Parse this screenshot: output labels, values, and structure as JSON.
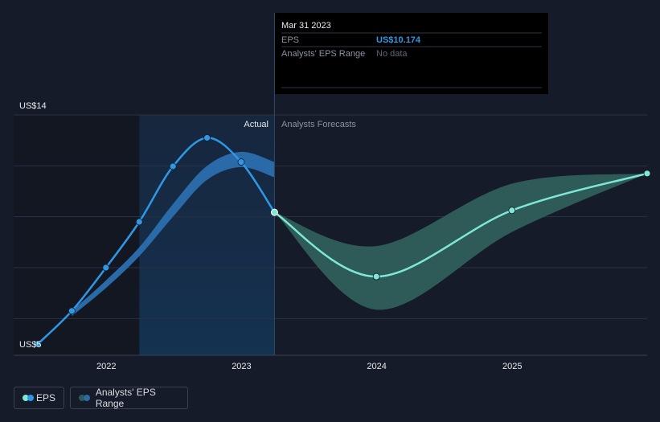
{
  "colors": {
    "background": "#151b28",
    "actual_shade": "#16263e",
    "eps_actual": "#2f98e6",
    "eps_actual_band": "#2a6aa8",
    "eps_forecast": "#7de8d6",
    "forecast_band": "#2e5a58",
    "grid": "#2a3140",
    "text_muted": "#8b93a1",
    "text_light": "#e6e9ee"
  },
  "tooltip": {
    "date": "Mar 31 2023",
    "eps_label": "EPS",
    "eps_value": "US$10.174",
    "range_label": "Analysts' EPS Range",
    "range_value": "No data"
  },
  "section_labels": {
    "actual": "Actual",
    "forecast": "Analysts Forecasts"
  },
  "legend": {
    "eps": "EPS",
    "range": "Analysts' EPS Range"
  },
  "chart_data": {
    "type": "line",
    "ylim": [
      5,
      14
    ],
    "ytick_labels": [
      {
        "value": 14,
        "label": "US$14"
      },
      {
        "value": 5,
        "label": "US$5"
      }
    ],
    "y_gridlines": [
      14,
      12,
      10,
      8,
      6
    ],
    "xlim": [
      "2021-06-30",
      "2025-12-31"
    ],
    "xticks": [
      {
        "date": "2022-01-01",
        "label": "2022"
      },
      {
        "date": "2023-01-01",
        "label": "2023"
      },
      {
        "date": "2024-01-01",
        "label": "2024"
      },
      {
        "date": "2025-01-01",
        "label": "2025"
      }
    ],
    "actual_period_start": "2022-03-31",
    "present_date": "2023-03-31",
    "series": [
      {
        "name": "EPS",
        "kind": "actual",
        "points": [
          {
            "date": "2021-06-30",
            "value": 5.0
          },
          {
            "date": "2021-09-30",
            "value": 6.3
          },
          {
            "date": "2021-12-31",
            "value": 8.0
          },
          {
            "date": "2022-03-31",
            "value": 9.8
          },
          {
            "date": "2022-06-30",
            "value": 11.98
          },
          {
            "date": "2022-09-30",
            "value": 13.1
          },
          {
            "date": "2022-12-31",
            "value": 12.15
          },
          {
            "date": "2023-03-31",
            "value": 10.174
          }
        ]
      },
      {
        "name": "EPS",
        "kind": "forecast",
        "points": [
          {
            "date": "2023-03-31",
            "value": 10.174
          },
          {
            "date": "2023-12-31",
            "value": 7.65
          },
          {
            "date": "2024-12-31",
            "value": 10.25
          },
          {
            "date": "2025-12-31",
            "value": 11.7
          }
        ]
      }
    ],
    "actual_band": {
      "upper": [
        {
          "date": "2021-09-30",
          "value": 6.3
        },
        {
          "date": "2021-12-31",
          "value": 7.5
        },
        {
          "date": "2022-03-31",
          "value": 8.8
        },
        {
          "date": "2022-06-30",
          "value": 10.5
        },
        {
          "date": "2022-09-30",
          "value": 12.0
        },
        {
          "date": "2022-12-31",
          "value": 12.55
        },
        {
          "date": "2023-03-31",
          "value": 12.15
        }
      ],
      "lower": [
        {
          "date": "2021-09-30",
          "value": 6.1
        },
        {
          "date": "2021-12-31",
          "value": 7.2
        },
        {
          "date": "2022-03-31",
          "value": 8.45
        },
        {
          "date": "2022-06-30",
          "value": 10.0
        },
        {
          "date": "2022-09-30",
          "value": 11.45
        },
        {
          "date": "2022-12-31",
          "value": 11.95
        },
        {
          "date": "2023-03-31",
          "value": 11.55
        }
      ]
    },
    "forecast_band": {
      "upper": [
        {
          "date": "2023-03-31",
          "value": 10.174
        },
        {
          "date": "2023-12-31",
          "value": 8.85
        },
        {
          "date": "2024-12-31",
          "value": 11.3
        },
        {
          "date": "2025-12-31",
          "value": 11.7
        }
      ],
      "lower": [
        {
          "date": "2023-03-31",
          "value": 10.174
        },
        {
          "date": "2023-12-31",
          "value": 6.35
        },
        {
          "date": "2024-12-31",
          "value": 9.4
        },
        {
          "date": "2025-12-31",
          "value": 11.7
        }
      ]
    }
  }
}
